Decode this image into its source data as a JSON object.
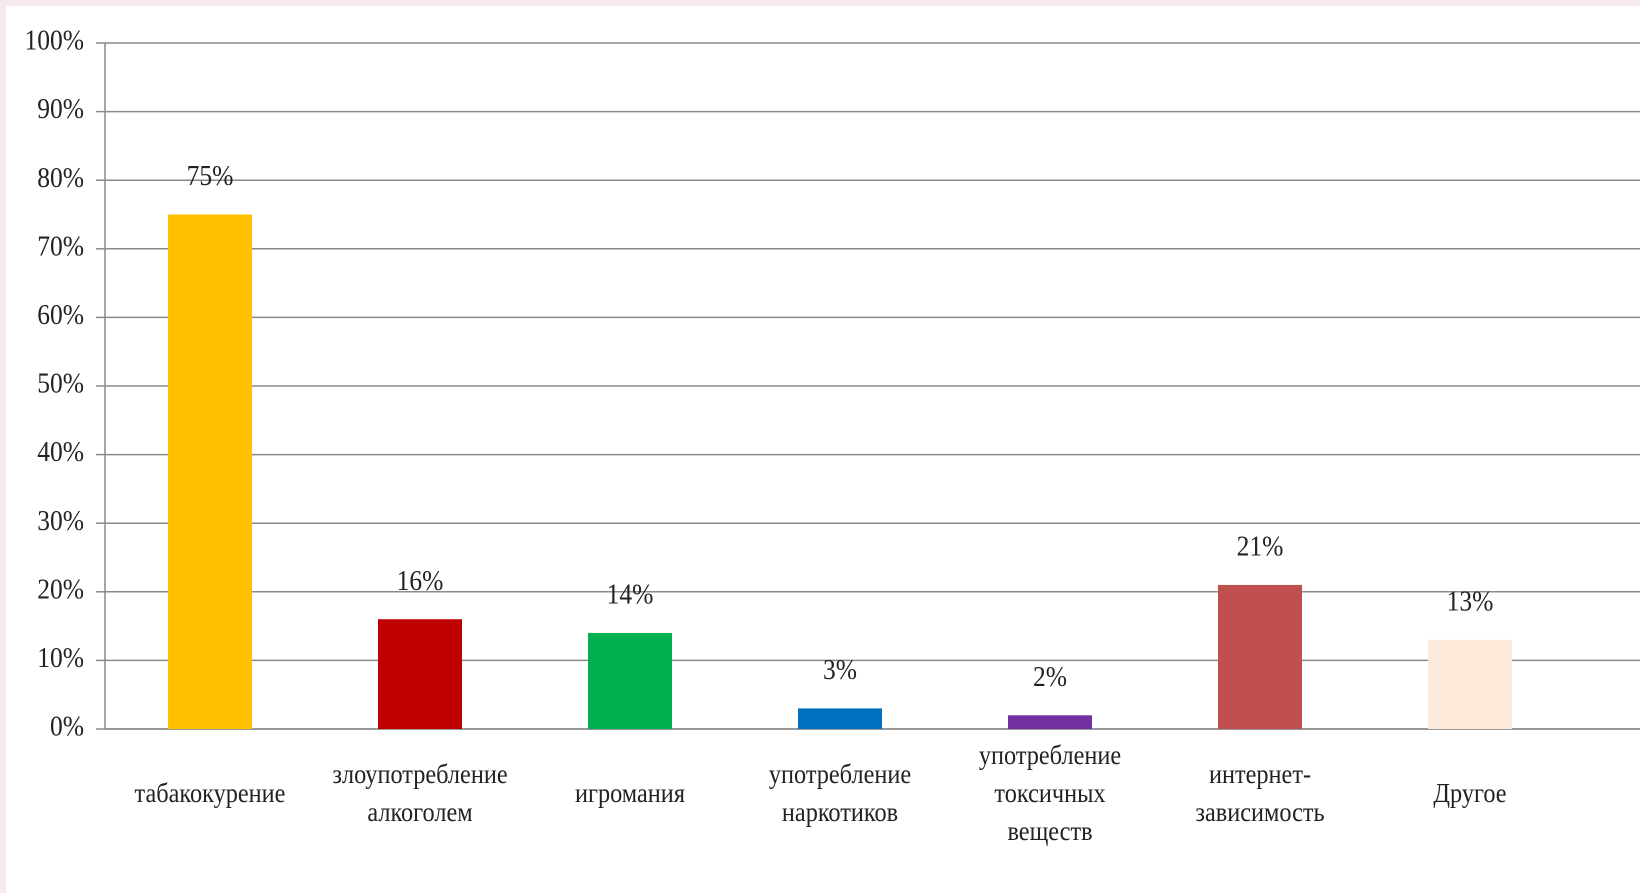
{
  "chart_data": {
    "type": "bar",
    "categories": [
      "табакокурение",
      "злоупотребление алкоголем",
      "игромания",
      "употребление наркотиков",
      "употребление токсичных веществ",
      "интернет-зависимость",
      "Другое"
    ],
    "values": [
      75,
      16,
      14,
      3,
      2,
      21,
      13
    ],
    "value_labels": [
      "75%",
      "16%",
      "14%",
      "3%",
      "2%",
      "21%",
      "13%"
    ],
    "colors": [
      "#ffc000",
      "#c00000",
      "#00b050",
      "#0070c0",
      "#7030a0",
      "#c0504d",
      "#fde9d9"
    ],
    "ylim": [
      0,
      100
    ],
    "yticks": [
      {
        "value": 0,
        "label": "0%"
      },
      {
        "value": 10,
        "label": "10%"
      },
      {
        "value": 20,
        "label": "20%"
      },
      {
        "value": 30,
        "label": "30%"
      },
      {
        "value": 40,
        "label": "40%"
      },
      {
        "value": 50,
        "label": "50%"
      },
      {
        "value": 60,
        "label": "60%"
      },
      {
        "value": 70,
        "label": "70%"
      },
      {
        "value": 80,
        "label": "80%"
      },
      {
        "value": 90,
        "label": "90%"
      },
      {
        "value": 100,
        "label": "100%"
      }
    ],
    "grid": true
  }
}
